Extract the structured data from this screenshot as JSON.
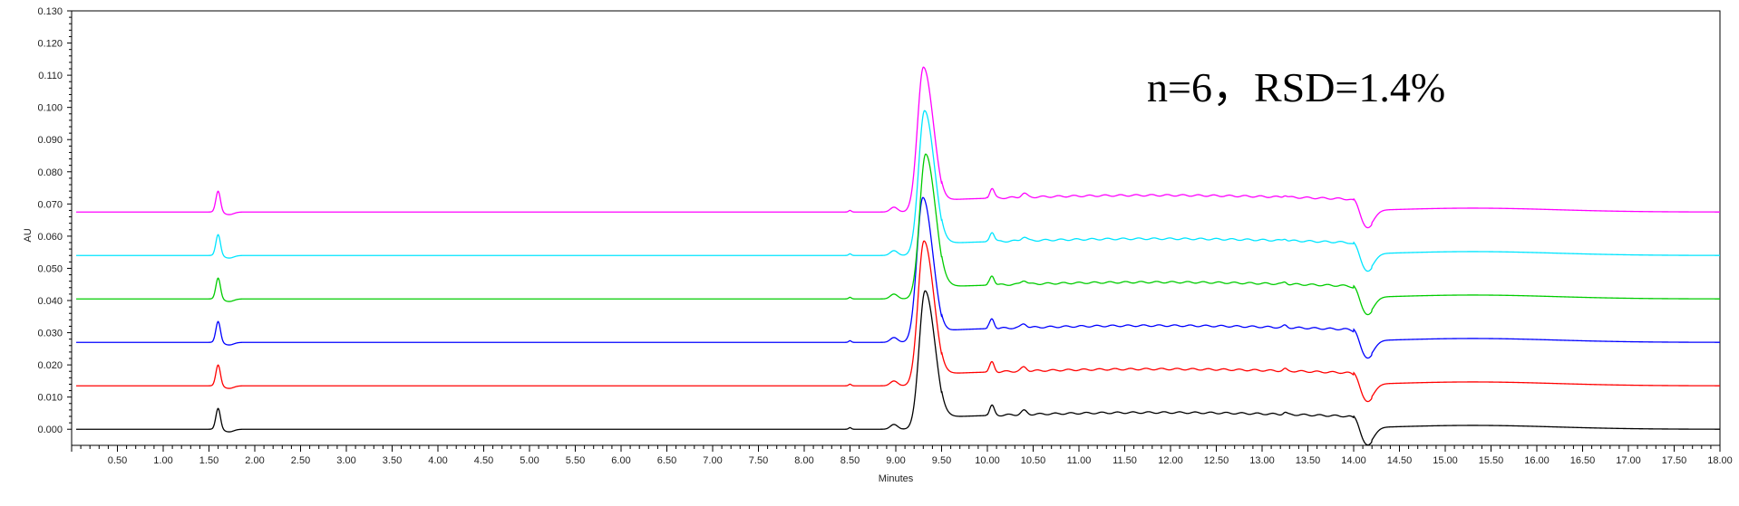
{
  "chart_data": {
    "type": "line",
    "xlabel": "Minutes",
    "ylabel": "AU",
    "xlim": [
      0,
      18.0
    ],
    "ylim": [
      -0.005,
      0.13
    ],
    "x_ticks": [
      "0.50",
      "1.00",
      "1.50",
      "2.00",
      "2.50",
      "3.00",
      "3.50",
      "4.00",
      "4.50",
      "5.00",
      "5.50",
      "6.00",
      "6.50",
      "7.00",
      "7.50",
      "8.00",
      "8.50",
      "9.00",
      "9.50",
      "10.00",
      "10.50",
      "11.00",
      "11.50",
      "12.00",
      "12.50",
      "13.00",
      "13.50",
      "14.00",
      "14.50",
      "15.00",
      "15.50",
      "16.00",
      "16.50",
      "17.00",
      "17.50",
      "18.00"
    ],
    "y_ticks": [
      "0.000",
      "0.010",
      "0.020",
      "0.030",
      "0.040",
      "0.050",
      "0.060",
      "0.070",
      "0.080",
      "0.090",
      "0.100",
      "0.110",
      "0.120",
      "0.130"
    ],
    "annotation": "n=6，RSD=1.4%",
    "series": [
      {
        "color": "#000000",
        "baseline": 0.0,
        "peak_height": 0.043
      },
      {
        "color": "#ff0000",
        "baseline": 0.0135,
        "peak_height": 0.045
      },
      {
        "color": "#0000ff",
        "baseline": 0.027,
        "peak_height": 0.045
      },
      {
        "color": "#00cc00",
        "baseline": 0.0405,
        "peak_height": 0.045
      },
      {
        "color": "#00e5ff",
        "baseline": 0.054,
        "peak_height": 0.045
      },
      {
        "color": "#ff00ff",
        "baseline": 0.0675,
        "peak_height": 0.045
      }
    ],
    "features": {
      "solvent_peak": {
        "t": 1.6,
        "height": 0.0065
      },
      "main_peak": {
        "t": 9.32
      },
      "minor_peak": {
        "t": 10.05,
        "height": 0.003
      },
      "dip": {
        "t": 14.15,
        "depth": -0.005
      }
    }
  }
}
